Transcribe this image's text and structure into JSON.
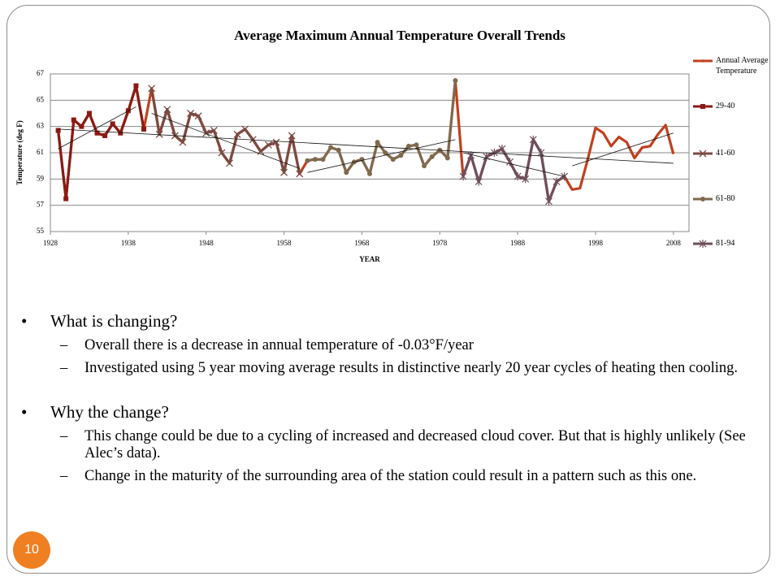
{
  "chart_data": {
    "type": "line",
    "title": "Average Maximum Annual Temperature Overall Trends",
    "x_label": "YEAR",
    "y_label": "Temperature (deg F)",
    "x": [
      1929,
      1930,
      1931,
      1932,
      1933,
      1934,
      1935,
      1936,
      1937,
      1938,
      1939,
      1940,
      1941,
      1942,
      1943,
      1944,
      1945,
      1946,
      1947,
      1948,
      1949,
      1950,
      1951,
      1952,
      1953,
      1954,
      1955,
      1956,
      1957,
      1958,
      1959,
      1960,
      1961,
      1962,
      1963,
      1964,
      1965,
      1966,
      1967,
      1968,
      1969,
      1970,
      1971,
      1972,
      1973,
      1974,
      1975,
      1976,
      1977,
      1978,
      1979,
      1980,
      1981,
      1982,
      1983,
      1984,
      1985,
      1986,
      1987,
      1988,
      1989,
      1990,
      1991,
      1992,
      1993,
      1994,
      1995,
      1996,
      1997,
      1998,
      1999,
      2000,
      2001,
      2002,
      2003,
      2004,
      2005,
      2006,
      2007,
      2008
    ],
    "series": [
      {
        "name": "Annual Average Temperature",
        "color": "#c0401e",
        "marker": "none",
        "values": [
          62.7,
          57.5,
          63.5,
          63.0,
          64.0,
          62.5,
          62.3,
          63.2,
          62.5,
          64.2,
          66.1,
          62.8,
          65.9,
          62.4,
          64.3,
          62.3,
          61.8,
          64.0,
          63.8,
          62.5,
          62.7,
          61.0,
          60.2,
          62.4,
          62.8,
          62.0,
          61.1,
          61.6,
          61.8,
          59.5,
          62.3,
          59.4,
          60.4,
          60.5,
          60.5,
          61.4,
          61.2,
          59.5,
          60.3,
          60.5,
          59.4,
          61.8,
          61.0,
          60.5,
          60.8,
          61.5,
          61.6,
          60.0,
          60.7,
          61.2,
          60.6,
          66.5,
          59.2,
          60.8,
          58.8,
          60.7,
          61.0,
          61.3,
          60.3,
          59.2,
          59.0,
          62.0,
          61.0,
          57.3,
          58.8,
          59.2,
          58.2,
          58.3,
          60.5,
          62.9,
          62.5,
          61.5,
          62.2,
          61.8,
          60.6,
          61.4,
          61.5,
          62.4,
          63.1,
          60.9
        ]
      },
      {
        "name": "29-40",
        "color": "#8b1a14",
        "marker": "square",
        "values": [
          62.7,
          57.5,
          63.5,
          63.0,
          64.0,
          62.5,
          62.3,
          63.2,
          62.5,
          64.2,
          66.1,
          62.8,
          null,
          null,
          null,
          null,
          null,
          null,
          null,
          null,
          null,
          null,
          null,
          null,
          null,
          null,
          null,
          null,
          null,
          null,
          null,
          null,
          null,
          null,
          null,
          null,
          null,
          null,
          null,
          null,
          null,
          null,
          null,
          null,
          null,
          null,
          null,
          null,
          null,
          null,
          null,
          null,
          null,
          null,
          null,
          null,
          null,
          null,
          null,
          null,
          null,
          null,
          null,
          null,
          null,
          null,
          null,
          null,
          null,
          null,
          null,
          null,
          null,
          null,
          null,
          null,
          null,
          null,
          null,
          null
        ]
      },
      {
        "name": "41-60",
        "color": "#7b4a42",
        "marker": "x",
        "values": [
          null,
          null,
          null,
          null,
          null,
          null,
          null,
          null,
          null,
          null,
          null,
          null,
          65.9,
          62.4,
          64.3,
          62.3,
          61.8,
          64.0,
          63.8,
          62.5,
          62.7,
          61.0,
          60.2,
          62.4,
          62.8,
          62.0,
          61.1,
          61.6,
          61.8,
          59.5,
          62.3,
          59.4,
          null,
          null,
          null,
          null,
          null,
          null,
          null,
          null,
          null,
          null,
          null,
          null,
          null,
          null,
          null,
          null,
          null,
          null,
          null,
          null,
          null,
          null,
          null,
          null,
          null,
          null,
          null,
          null,
          null,
          null,
          null,
          null,
          null,
          null,
          null,
          null,
          null,
          null,
          null,
          null,
          null,
          null,
          null,
          null,
          null,
          null,
          null,
          null
        ]
      },
      {
        "name": "61-80",
        "color": "#7f6a4e",
        "marker": "circle",
        "values": [
          null,
          null,
          null,
          null,
          null,
          null,
          null,
          null,
          null,
          null,
          null,
          null,
          null,
          null,
          null,
          null,
          null,
          null,
          null,
          null,
          null,
          null,
          null,
          null,
          null,
          null,
          null,
          null,
          null,
          null,
          null,
          null,
          60.4,
          60.5,
          60.5,
          61.4,
          61.2,
          59.5,
          60.3,
          60.5,
          59.4,
          61.8,
          61.0,
          60.5,
          60.8,
          61.5,
          61.6,
          60.0,
          60.7,
          61.2,
          60.6,
          66.5,
          null,
          null,
          null,
          null,
          null,
          null,
          null,
          null,
          null,
          null,
          null,
          null,
          null,
          null,
          null,
          null,
          null,
          null,
          null,
          null,
          null,
          null,
          null,
          null,
          null,
          null,
          null,
          null
        ]
      },
      {
        "name": "81-94",
        "color": "#6e4e5c",
        "marker": "star",
        "values": [
          null,
          null,
          null,
          null,
          null,
          null,
          null,
          null,
          null,
          null,
          null,
          null,
          null,
          null,
          null,
          null,
          null,
          null,
          null,
          null,
          null,
          null,
          null,
          null,
          null,
          null,
          null,
          null,
          null,
          null,
          null,
          null,
          null,
          null,
          null,
          null,
          null,
          null,
          null,
          null,
          null,
          null,
          null,
          null,
          null,
          null,
          null,
          null,
          null,
          null,
          null,
          null,
          59.2,
          60.8,
          58.8,
          60.7,
          61.0,
          61.3,
          60.3,
          59.2,
          59.0,
          62.0,
          61.0,
          57.3,
          58.8,
          59.2,
          null,
          null,
          null,
          null,
          null,
          null,
          null,
          null,
          null,
          null,
          null,
          null,
          null,
          null
        ]
      }
    ],
    "trendlines": [
      {
        "x": [
          1929,
          2008
        ],
        "values": [
          62.8,
          60.2
        ]
      },
      {
        "x": [
          1929,
          1939
        ],
        "values": [
          61.3,
          64.5
        ]
      },
      {
        "x": [
          1941,
          1960
        ],
        "values": [
          64.0,
          59.8
        ]
      },
      {
        "x": [
          1961,
          1980
        ],
        "values": [
          59.5,
          62.0
        ]
      },
      {
        "x": [
          1981,
          1994
        ],
        "values": [
          61.0,
          59.2
        ]
      },
      {
        "x": [
          1995,
          2008
        ],
        "values": [
          60.0,
          62.5
        ]
      }
    ],
    "xlim": [
      1928,
      2010
    ],
    "xticks": [
      1928,
      1938,
      1948,
      1958,
      1968,
      1978,
      1988,
      1998,
      2008
    ],
    "ylim": [
      55,
      67
    ],
    "yticks": [
      55,
      57,
      59,
      61,
      63,
      65,
      67
    ],
    "grid": true,
    "legend": "right"
  },
  "bullets": [
    {
      "text": "What is changing?",
      "subs": [
        "Overall there is a decrease in annual temperature of -0.03°F/year",
        "Investigated using 5 year moving average results in distinctive nearly 20 year cycles of heating then cooling."
      ]
    },
    {
      "text": "Why the change?",
      "subs": [
        "This change could be due to a cycling of increased and decreased cloud cover. But that is highly unlikely (See Alec’s data).",
        "Change in the maturity of the surrounding area of the station could result in a pattern such as this one."
      ]
    }
  ],
  "slide_number": "10"
}
